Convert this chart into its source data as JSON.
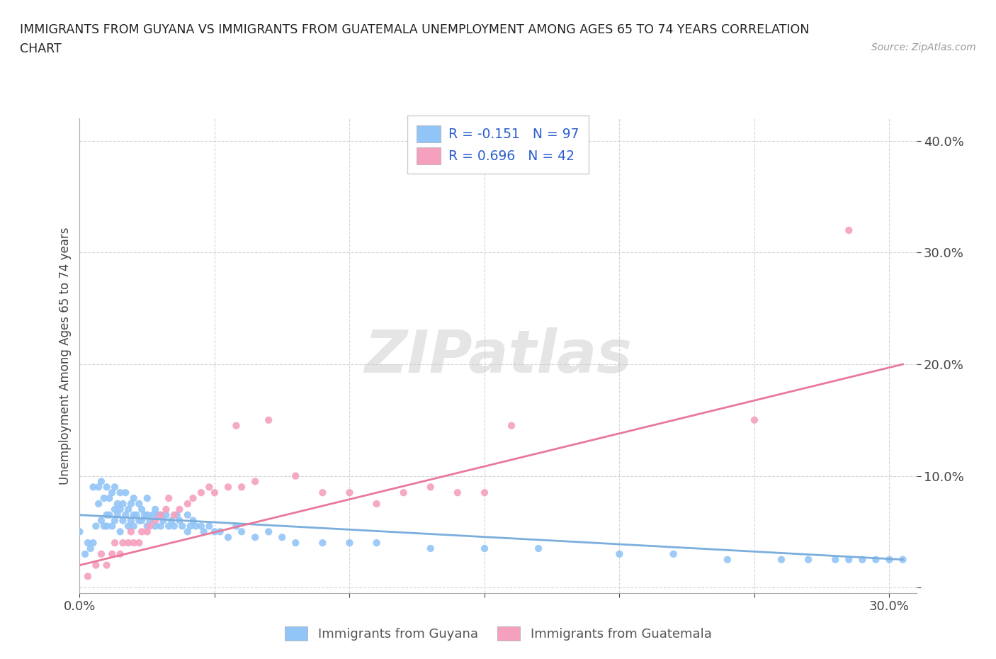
{
  "title_line1": "IMMIGRANTS FROM GUYANA VS IMMIGRANTS FROM GUATEMALA UNEMPLOYMENT AMONG AGES 65 TO 74 YEARS CORRELATION",
  "title_line2": "CHART",
  "source": "Source: ZipAtlas.com",
  "ylabel": "Unemployment Among Ages 65 to 74 years",
  "xlim": [
    0.0,
    0.31
  ],
  "ylim": [
    -0.005,
    0.42
  ],
  "xticks": [
    0.0,
    0.05,
    0.1,
    0.15,
    0.2,
    0.25,
    0.3
  ],
  "yticks": [
    0.0,
    0.1,
    0.2,
    0.3,
    0.4
  ],
  "guyana_R": -0.151,
  "guyana_N": 97,
  "guatemala_R": 0.696,
  "guatemala_N": 42,
  "guyana_color": "#92C5F7",
  "guatemala_color": "#F5A0BE",
  "guyana_line_color": "#7BAEDD",
  "guatemala_line_color": "#E8799A",
  "legend_R_color": "#2B5FCC",
  "watermark_color": "#DDDDDD",
  "guyana_x": [
    0.0,
    0.002,
    0.003,
    0.004,
    0.005,
    0.005,
    0.006,
    0.007,
    0.007,
    0.008,
    0.008,
    0.009,
    0.009,
    0.01,
    0.01,
    0.01,
    0.011,
    0.011,
    0.012,
    0.012,
    0.013,
    0.013,
    0.013,
    0.014,
    0.014,
    0.015,
    0.015,
    0.015,
    0.016,
    0.016,
    0.017,
    0.017,
    0.018,
    0.018,
    0.019,
    0.019,
    0.02,
    0.02,
    0.02,
    0.021,
    0.022,
    0.022,
    0.023,
    0.023,
    0.024,
    0.025,
    0.025,
    0.025,
    0.026,
    0.027,
    0.028,
    0.028,
    0.029,
    0.03,
    0.03,
    0.031,
    0.032,
    0.033,
    0.034,
    0.035,
    0.036,
    0.037,
    0.038,
    0.04,
    0.04,
    0.041,
    0.042,
    0.043,
    0.045,
    0.046,
    0.048,
    0.05,
    0.052,
    0.055,
    0.058,
    0.06,
    0.065,
    0.07,
    0.075,
    0.08,
    0.09,
    0.1,
    0.11,
    0.13,
    0.15,
    0.17,
    0.2,
    0.22,
    0.24,
    0.26,
    0.27,
    0.28,
    0.285,
    0.29,
    0.295,
    0.3,
    0.305
  ],
  "guyana_y": [
    0.05,
    0.03,
    0.04,
    0.035,
    0.04,
    0.09,
    0.055,
    0.09,
    0.075,
    0.06,
    0.095,
    0.055,
    0.08,
    0.055,
    0.065,
    0.09,
    0.065,
    0.08,
    0.055,
    0.085,
    0.06,
    0.07,
    0.09,
    0.065,
    0.075,
    0.07,
    0.085,
    0.05,
    0.06,
    0.075,
    0.065,
    0.085,
    0.055,
    0.07,
    0.06,
    0.075,
    0.055,
    0.065,
    0.08,
    0.065,
    0.06,
    0.075,
    0.06,
    0.07,
    0.065,
    0.055,
    0.065,
    0.08,
    0.06,
    0.065,
    0.055,
    0.07,
    0.065,
    0.055,
    0.065,
    0.06,
    0.065,
    0.055,
    0.06,
    0.055,
    0.065,
    0.06,
    0.055,
    0.05,
    0.065,
    0.055,
    0.06,
    0.055,
    0.055,
    0.05,
    0.055,
    0.05,
    0.05,
    0.045,
    0.055,
    0.05,
    0.045,
    0.05,
    0.045,
    0.04,
    0.04,
    0.04,
    0.04,
    0.035,
    0.035,
    0.035,
    0.03,
    0.03,
    0.025,
    0.025,
    0.025,
    0.025,
    0.025,
    0.025,
    0.025,
    0.025,
    0.025
  ],
  "guatemala_x": [
    0.003,
    0.006,
    0.008,
    0.01,
    0.012,
    0.013,
    0.015,
    0.016,
    0.018,
    0.019,
    0.02,
    0.022,
    0.023,
    0.025,
    0.026,
    0.028,
    0.03,
    0.032,
    0.033,
    0.035,
    0.037,
    0.04,
    0.042,
    0.045,
    0.048,
    0.05,
    0.055,
    0.058,
    0.06,
    0.065,
    0.07,
    0.08,
    0.09,
    0.1,
    0.11,
    0.12,
    0.13,
    0.14,
    0.15,
    0.16,
    0.25,
    0.285
  ],
  "guatemala_y": [
    0.01,
    0.02,
    0.03,
    0.02,
    0.03,
    0.04,
    0.03,
    0.04,
    0.04,
    0.05,
    0.04,
    0.04,
    0.05,
    0.05,
    0.055,
    0.06,
    0.065,
    0.07,
    0.08,
    0.065,
    0.07,
    0.075,
    0.08,
    0.085,
    0.09,
    0.085,
    0.09,
    0.145,
    0.09,
    0.095,
    0.15,
    0.1,
    0.085,
    0.085,
    0.075,
    0.085,
    0.09,
    0.085,
    0.085,
    0.145,
    0.15,
    0.32
  ],
  "guyana_line_x": [
    0.0,
    0.305
  ],
  "guyana_line_y": [
    0.065,
    0.025
  ],
  "guatemala_line_x": [
    0.0,
    0.305
  ],
  "guatemala_line_y": [
    0.02,
    0.2
  ]
}
